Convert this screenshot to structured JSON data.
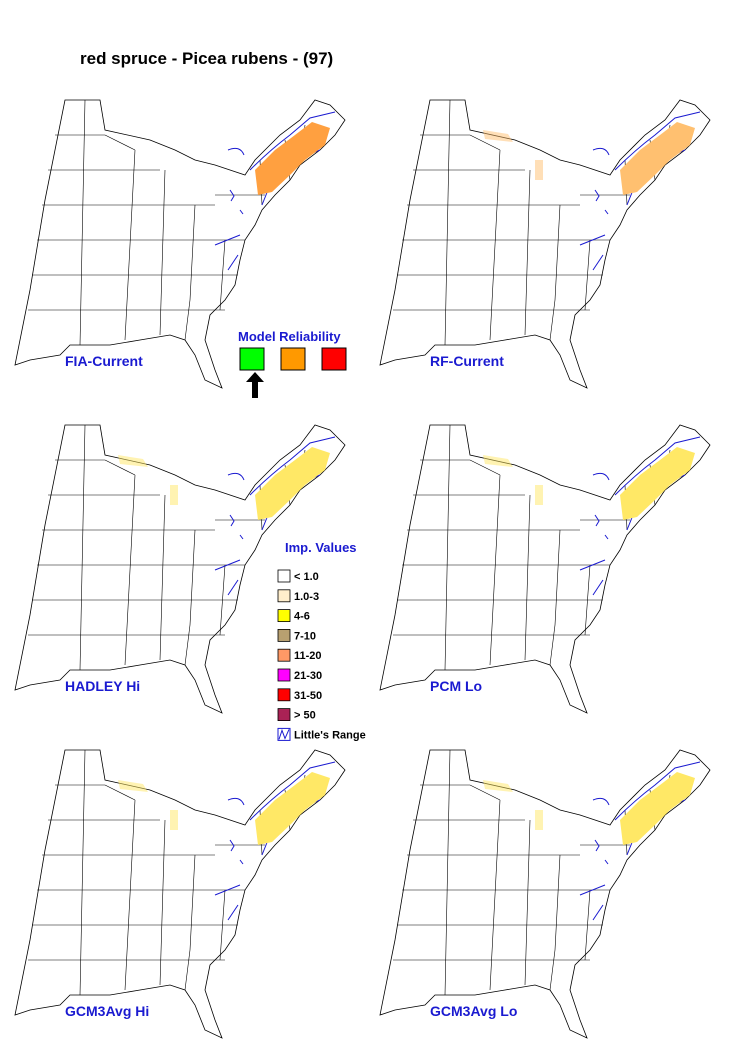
{
  "title": "red spruce - Picea rubens - (97)",
  "maps": [
    {
      "label": "FIA-Current",
      "color": "#ffa040"
    },
    {
      "label": "RF-Current",
      "color": "#ffc070"
    },
    {
      "label": "HADLEY Hi",
      "color": "#ffe866"
    },
    {
      "label": "PCM Lo",
      "color": "#ffe866"
    },
    {
      "label": "GCM3Avg Hi",
      "color": "#ffe866"
    },
    {
      "label": "GCM3Avg Lo",
      "color": "#ffe866"
    }
  ],
  "model_reliability": {
    "title": "Model Reliability",
    "colors": [
      "#00ff00",
      "#ff9900",
      "#ff0000"
    ]
  },
  "imp_values": {
    "title": "Imp. Values",
    "classes": [
      {
        "label": "< 1.0",
        "color": "#ffffff"
      },
      {
        "label": "1.0-3",
        "color": "#ffeecc"
      },
      {
        "label": "4-6",
        "color": "#ffff00"
      },
      {
        "label": "7-10",
        "color": "#b8a070"
      },
      {
        "label": "11-20",
        "color": "#ff9966"
      },
      {
        "label": "21-30",
        "color": "#ff00ff"
      },
      {
        "label": "31-50",
        "color": "#ff0000"
      },
      {
        "label": "> 50",
        "color": "#aa2255"
      }
    ],
    "range_label": "Little's Range"
  }
}
